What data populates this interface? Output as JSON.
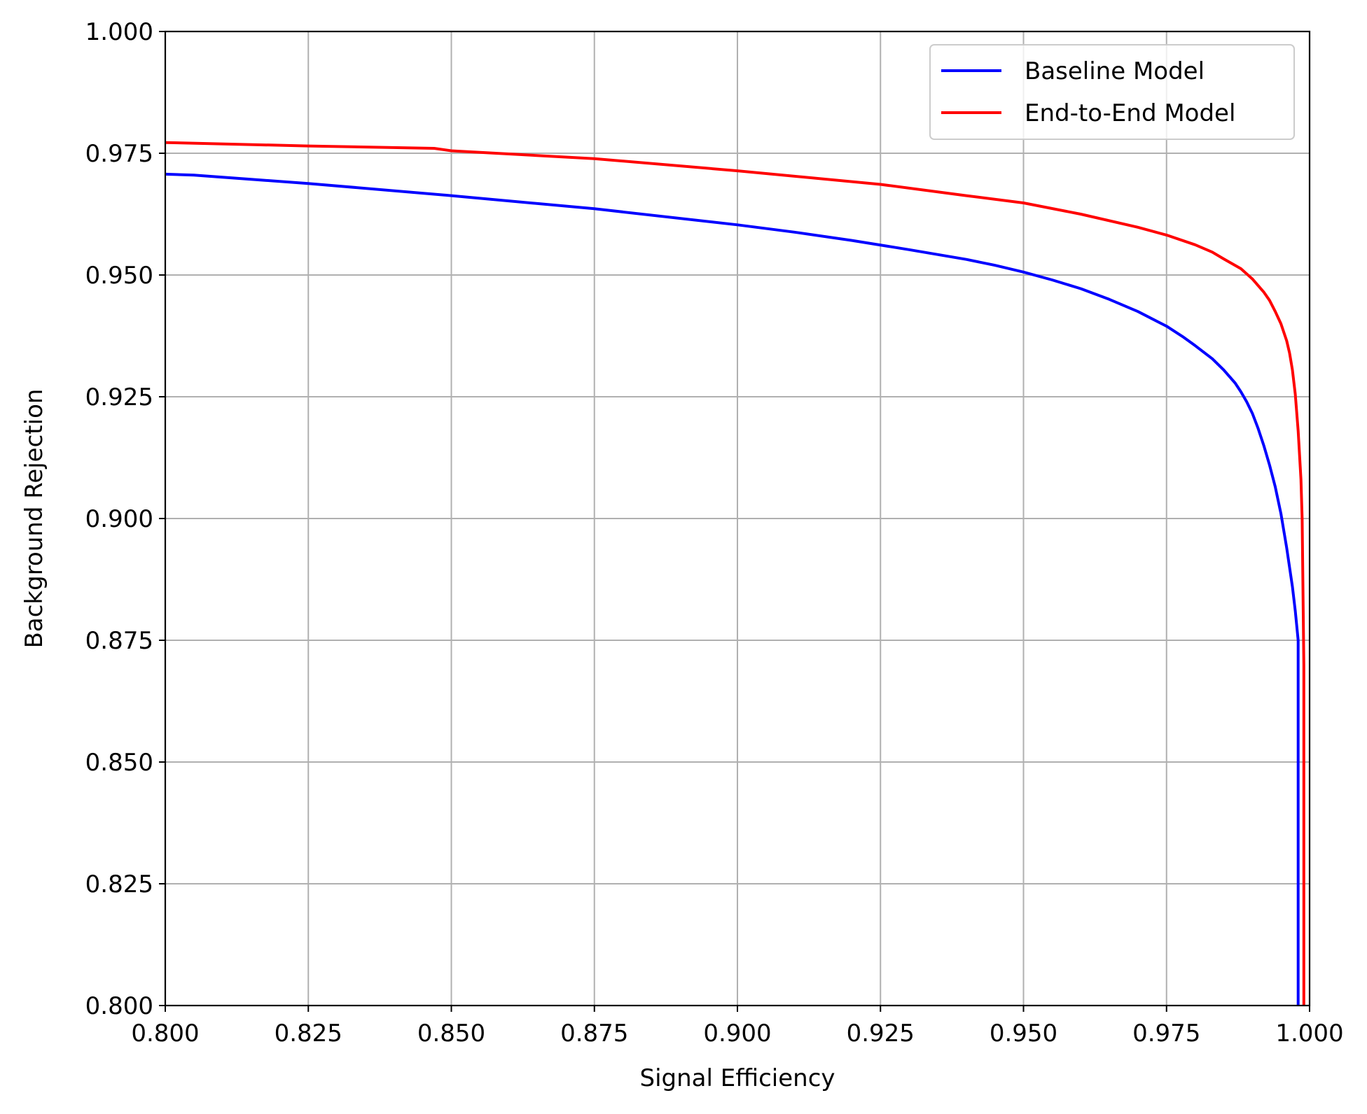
{
  "chart_data": {
    "type": "line",
    "title": "",
    "xlabel": "Signal Efficiency",
    "ylabel": "Background Rejection",
    "xlim": [
      0.8,
      1.0
    ],
    "ylim": [
      0.8,
      1.0
    ],
    "grid": true,
    "legend_position": "top-right",
    "x_ticks": [
      "0.800",
      "0.825",
      "0.850",
      "0.875",
      "0.900",
      "0.925",
      "0.950",
      "0.975",
      "1.000"
    ],
    "y_ticks": [
      "0.800",
      "0.825",
      "0.850",
      "0.875",
      "0.900",
      "0.925",
      "0.950",
      "0.975",
      "1.000"
    ],
    "series": [
      {
        "name": "Baseline Model",
        "color": "#0000ff",
        "x": [
          0.8,
          0.805,
          0.825,
          0.85,
          0.875,
          0.9,
          0.91,
          0.92,
          0.93,
          0.94,
          0.945,
          0.95,
          0.955,
          0.96,
          0.965,
          0.97,
          0.975,
          0.978,
          0.98,
          0.983,
          0.985,
          0.987,
          0.988,
          0.989,
          0.99,
          0.991,
          0.992,
          0.993,
          0.994,
          0.995,
          0.996,
          0.997,
          0.9975,
          0.998,
          0.998,
          0.998
        ],
        "y": [
          0.9707,
          0.9705,
          0.9688,
          0.9663,
          0.9636,
          0.9603,
          0.9588,
          0.9571,
          0.9552,
          0.9532,
          0.952,
          0.9506,
          0.949,
          0.9472,
          0.945,
          0.9425,
          0.9395,
          0.9372,
          0.9355,
          0.9328,
          0.9305,
          0.9278,
          0.926,
          0.924,
          0.9216,
          0.9185,
          0.915,
          0.911,
          0.9065,
          0.901,
          0.894,
          0.886,
          0.881,
          0.875,
          0.87,
          0.8
        ]
      },
      {
        "name": "End-to-End Model",
        "color": "#ff0000",
        "x": [
          0.8,
          0.825,
          0.847,
          0.85,
          0.875,
          0.9,
          0.925,
          0.94,
          0.95,
          0.96,
          0.97,
          0.975,
          0.98,
          0.983,
          0.985,
          0.988,
          0.99,
          0.992,
          0.993,
          0.994,
          0.995,
          0.996,
          0.9965,
          0.997,
          0.9975,
          0.998,
          0.9985,
          0.9987,
          0.999,
          0.999
        ],
        "y": [
          0.9772,
          0.9765,
          0.976,
          0.9755,
          0.9739,
          0.9714,
          0.9686,
          0.9663,
          0.9648,
          0.9625,
          0.9598,
          0.9582,
          0.9562,
          0.9547,
          0.9533,
          0.9513,
          0.9492,
          0.9465,
          0.9448,
          0.9425,
          0.94,
          0.9365,
          0.934,
          0.9305,
          0.9255,
          0.918,
          0.908,
          0.9,
          0.87,
          0.8
        ]
      }
    ]
  }
}
